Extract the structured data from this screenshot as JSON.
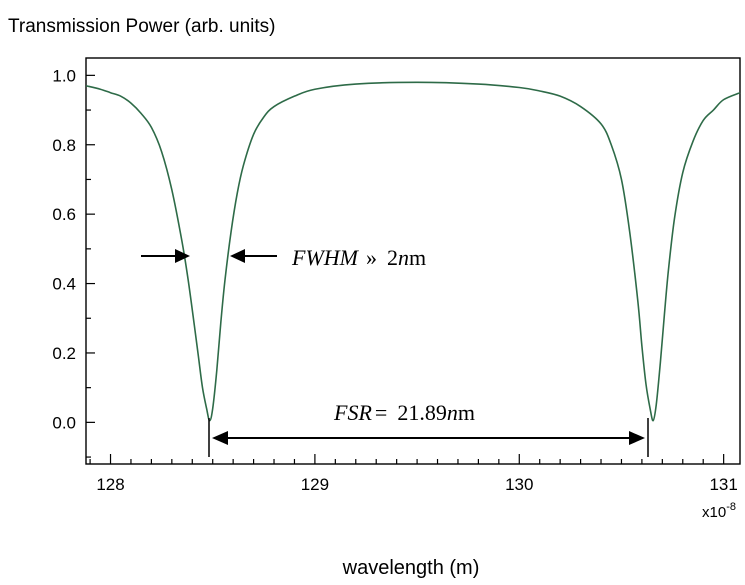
{
  "chart_data": {
    "type": "line",
    "title": "Transmission Power (arb. units)",
    "xlabel": "wavelength (m)",
    "x_multiplier": "x10",
    "x_multiplier_exp": "-8",
    "xlim": [
      127.88,
      131.08
    ],
    "ylim": [
      -0.12,
      1.05
    ],
    "x_ticks": [
      "128",
      "129",
      "130",
      "131"
    ],
    "y_ticks": [
      "1.0",
      "0.8",
      "0.6",
      "0.4",
      "0.2",
      "0.0"
    ],
    "line_color": "#2e6b48",
    "grid": false,
    "series": [
      {
        "x": [
          127.88,
          127.95,
          128.0,
          128.05,
          128.1,
          128.15,
          128.2,
          128.25,
          128.3,
          128.35,
          128.38,
          128.41,
          128.43,
          128.45,
          128.47,
          128.485,
          128.5,
          128.52,
          128.54,
          128.56,
          128.59,
          128.62,
          128.65,
          128.7,
          128.75,
          128.8,
          128.9,
          129.0,
          129.2,
          129.5,
          129.8,
          130.0,
          130.1,
          130.2,
          130.3,
          130.4,
          130.45,
          130.5,
          130.54,
          130.58,
          130.6,
          130.62,
          130.64,
          130.655,
          130.67,
          130.69,
          130.71,
          130.73,
          130.76,
          130.8,
          130.85,
          130.9,
          130.95,
          131.0,
          131.08
        ],
        "y": [
          0.97,
          0.96,
          0.95,
          0.94,
          0.92,
          0.89,
          0.85,
          0.78,
          0.67,
          0.52,
          0.41,
          0.28,
          0.19,
          0.1,
          0.04,
          0.005,
          0.04,
          0.15,
          0.29,
          0.41,
          0.55,
          0.66,
          0.74,
          0.83,
          0.88,
          0.91,
          0.94,
          0.96,
          0.975,
          0.98,
          0.975,
          0.965,
          0.955,
          0.94,
          0.91,
          0.86,
          0.8,
          0.7,
          0.55,
          0.35,
          0.22,
          0.11,
          0.04,
          0.005,
          0.05,
          0.17,
          0.31,
          0.44,
          0.59,
          0.72,
          0.81,
          0.87,
          0.9,
          0.93,
          0.95
        ]
      }
    ],
    "annotations": {
      "fwhm_label": "FWHM",
      "fwhm_symbol": "»",
      "fwhm_value": "2",
      "fwhm_unit_n": "n",
      "fwhm_unit_m": "m",
      "fsr_label": "FSR",
      "fsr_symbol": "=",
      "fsr_value": "21.89",
      "fsr_unit_n": "n",
      "fsr_unit_m": "m"
    }
  }
}
